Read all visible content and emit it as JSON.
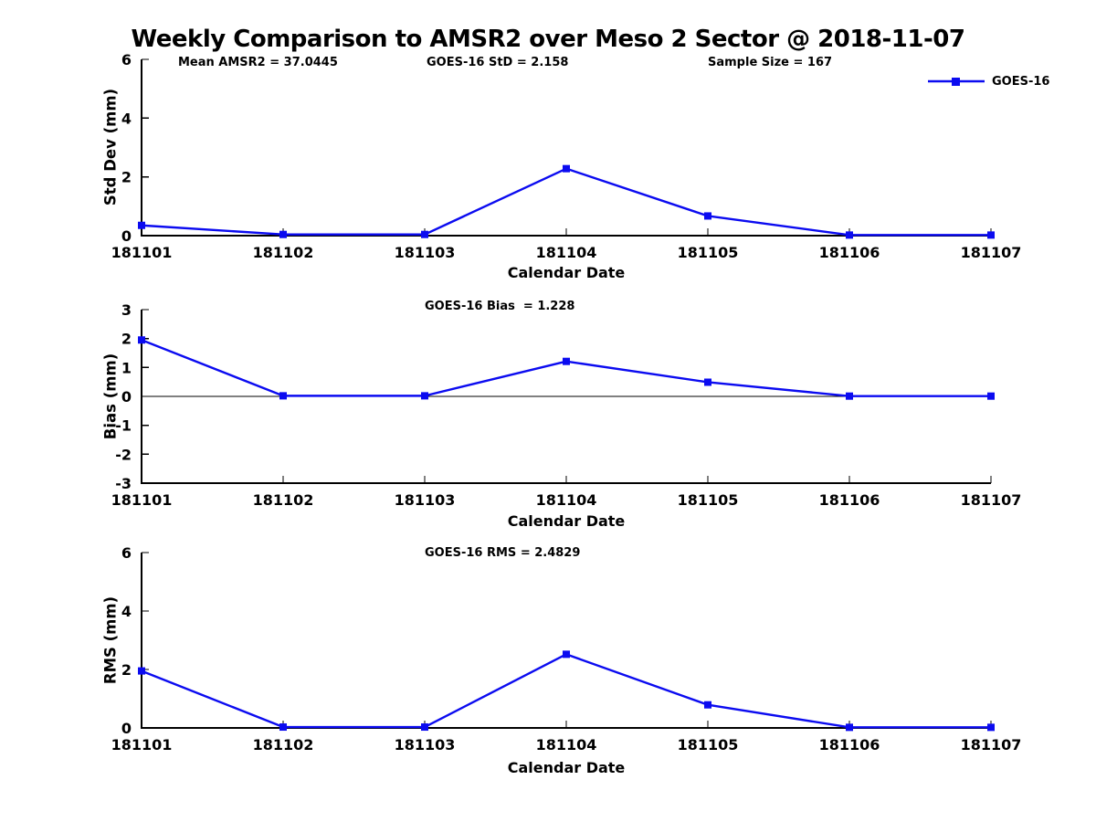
{
  "figure": {
    "title": "Weekly Comparison to AMSR2 over Meso 2 Sector @ 2018-11-07",
    "legend": {
      "label": "GOES-16"
    },
    "colors": {
      "series": "#0b0bf0",
      "axis": "#000000"
    }
  },
  "chart_data": [
    {
      "type": "line",
      "ylabel": "Std Dev (mm)",
      "xlabel": "Calendar Date",
      "categories": [
        "181101",
        "181102",
        "181103",
        "181104",
        "181105",
        "181106",
        "181107"
      ],
      "series": [
        {
          "name": "GOES-16",
          "values": [
            0.35,
            0.04,
            0.04,
            2.28,
            0.67,
            0.02,
            0.02
          ]
        }
      ],
      "ylim": [
        0,
        6
      ],
      "yticks": [
        0,
        2,
        4,
        6
      ],
      "grid": false,
      "legend_position": "top-right",
      "annotations": [
        "Mean AMSR2 = 37.0445",
        "GOES-16 StD = 2.158",
        "Sample Size = 167"
      ]
    },
    {
      "type": "line",
      "ylabel": "Bias (mm)",
      "xlabel": "Calendar Date",
      "categories": [
        "181101",
        "181102",
        "181103",
        "181104",
        "181105",
        "181106",
        "181107"
      ],
      "series": [
        {
          "name": "GOES-16",
          "values": [
            1.95,
            0.02,
            0.02,
            1.21,
            0.49,
            0.01,
            0.01
          ]
        }
      ],
      "ylim": [
        -3,
        3
      ],
      "yticks": [
        3,
        2,
        1,
        0,
        -1,
        -2,
        -3
      ],
      "zero_line": true,
      "grid": false,
      "annotations": [
        "GOES-16 Bias  = 1.228"
      ]
    },
    {
      "type": "line",
      "ylabel": "RMS (mm)",
      "xlabel": "Calendar Date",
      "categories": [
        "181101",
        "181102",
        "181103",
        "181104",
        "181105",
        "181106",
        "181107"
      ],
      "series": [
        {
          "name": "GOES-16",
          "values": [
            1.95,
            0.03,
            0.03,
            2.52,
            0.79,
            0.02,
            0.02
          ]
        }
      ],
      "ylim": [
        0,
        6
      ],
      "yticks": [
        0,
        2,
        4,
        6
      ],
      "grid": false,
      "annotations": [
        "GOES-16 RMS = 2.4829"
      ]
    }
  ]
}
